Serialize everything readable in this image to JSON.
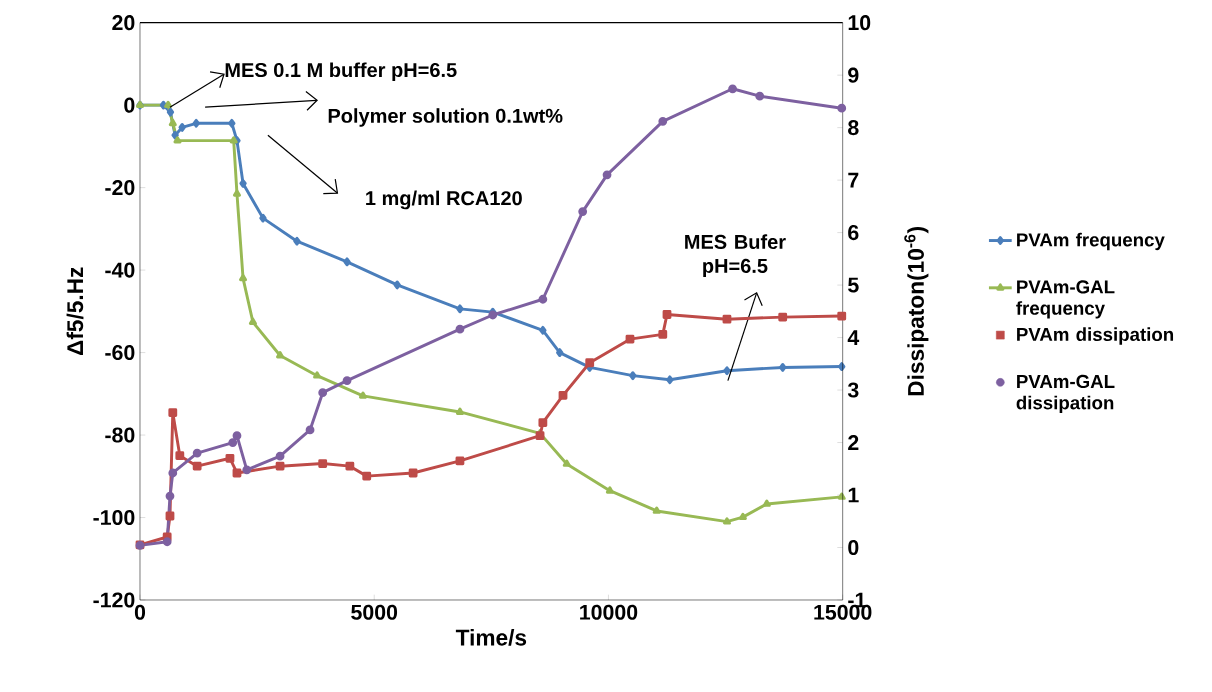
{
  "chart_data": {
    "type": "line",
    "xlabel": "Time/s",
    "ylabel": "Δf5/5.Hz",
    "y2label": "Dissipaton(10$^{-6}$)",
    "xlim": [
      0,
      15000
    ],
    "xticks": [
      0,
      5000,
      10000,
      15000
    ],
    "ylim": [
      -120,
      20
    ],
    "yticks": [
      -120,
      -100,
      -80,
      -60,
      -40,
      -20,
      0,
      20
    ],
    "y2lim": [
      -1,
      10
    ],
    "y2ticks": [
      -1,
      0,
      1,
      2,
      3,
      4,
      5,
      6,
      7,
      8,
      9,
      10
    ],
    "grid": false,
    "legend": "right",
    "annotations": [
      {
        "text": "MES 0.1 M buffer pH=6.5",
        "x": 640,
        "y": -0.5
      },
      "Polymer solution 0.1wt%",
      "1 mg/ml RCA120",
      "MES Bufer pH=6.5"
    ],
    "series": [
      {
        "name": "PVAm frequency",
        "color": "#4a7ebb",
        "marker": "diamond",
        "x": [
          0,
          500,
          650,
          750,
          900,
          1200,
          1960,
          2070,
          2200,
          2625,
          3350,
          4420,
          5490,
          6830,
          7530,
          8600,
          8960,
          9600,
          10520,
          11310,
          12530,
          13720,
          14980
        ],
        "values": [
          0,
          0,
          -1.7,
          -7.3,
          -5.4,
          -4.4,
          -4.4,
          -8.6,
          -19,
          -27.4,
          -33,
          -38,
          -43.6,
          -49.4,
          -50.2,
          -54.6,
          -60,
          -63.6,
          -65.6,
          -66.6,
          -64.4,
          -63.6,
          -63.4
        ]
      },
      {
        "name": "PVAm-GAL frequency",
        "color": "#98b954",
        "marker": "triangle",
        "x": [
          0,
          600,
          700,
          800,
          2000,
          2070,
          2200,
          2410,
          2990,
          3780,
          4760,
          6830,
          8540,
          9110,
          10030,
          11030,
          12530,
          12870,
          13380,
          14980
        ],
        "values": [
          0,
          0,
          -4.4,
          -8.6,
          -8.6,
          -21.5,
          -42,
          -52.6,
          -60.7,
          -65.6,
          -70.5,
          -74.4,
          -79.6,
          -87,
          -93.5,
          -98.4,
          -101,
          -99.9,
          -96.7,
          -95
        ]
      },
      {
        "name": "PVAm dissipation",
        "color": "#be4b48",
        "marker": "square",
        "axis": "y2",
        "x": [
          0,
          580,
          640,
          700,
          850,
          1220,
          1920,
          2070,
          2990,
          3900,
          4480,
          4840,
          5830,
          6830,
          8540,
          8600,
          9030,
          9600,
          10460,
          11160,
          11250,
          12530,
          13720,
          14980
        ],
        "values": [
          0.05,
          0.2,
          0.6,
          2.57,
          1.75,
          1.55,
          1.7,
          1.42,
          1.55,
          1.6,
          1.55,
          1.36,
          1.42,
          1.65,
          2.13,
          2.38,
          2.9,
          3.52,
          3.97,
          4.06,
          4.44,
          4.35,
          4.39,
          4.41
        ]
      },
      {
        "name": "PVAm-GAL dissipation",
        "color": "#7d60a0",
        "marker": "circle",
        "axis": "y2",
        "x": [
          0,
          580,
          640,
          700,
          1220,
          1980,
          2070,
          2280,
          2990,
          3630,
          3900,
          4420,
          6830,
          7530,
          8600,
          9450,
          9970,
          11160,
          12650,
          13230,
          14980
        ],
        "values": [
          0.04,
          0.11,
          0.98,
          1.42,
          1.8,
          2.0,
          2.13,
          1.48,
          1.74,
          2.24,
          2.95,
          3.18,
          4.16,
          4.43,
          4.73,
          6.4,
          7.1,
          8.12,
          8.74,
          8.6,
          8.37
        ]
      }
    ]
  }
}
